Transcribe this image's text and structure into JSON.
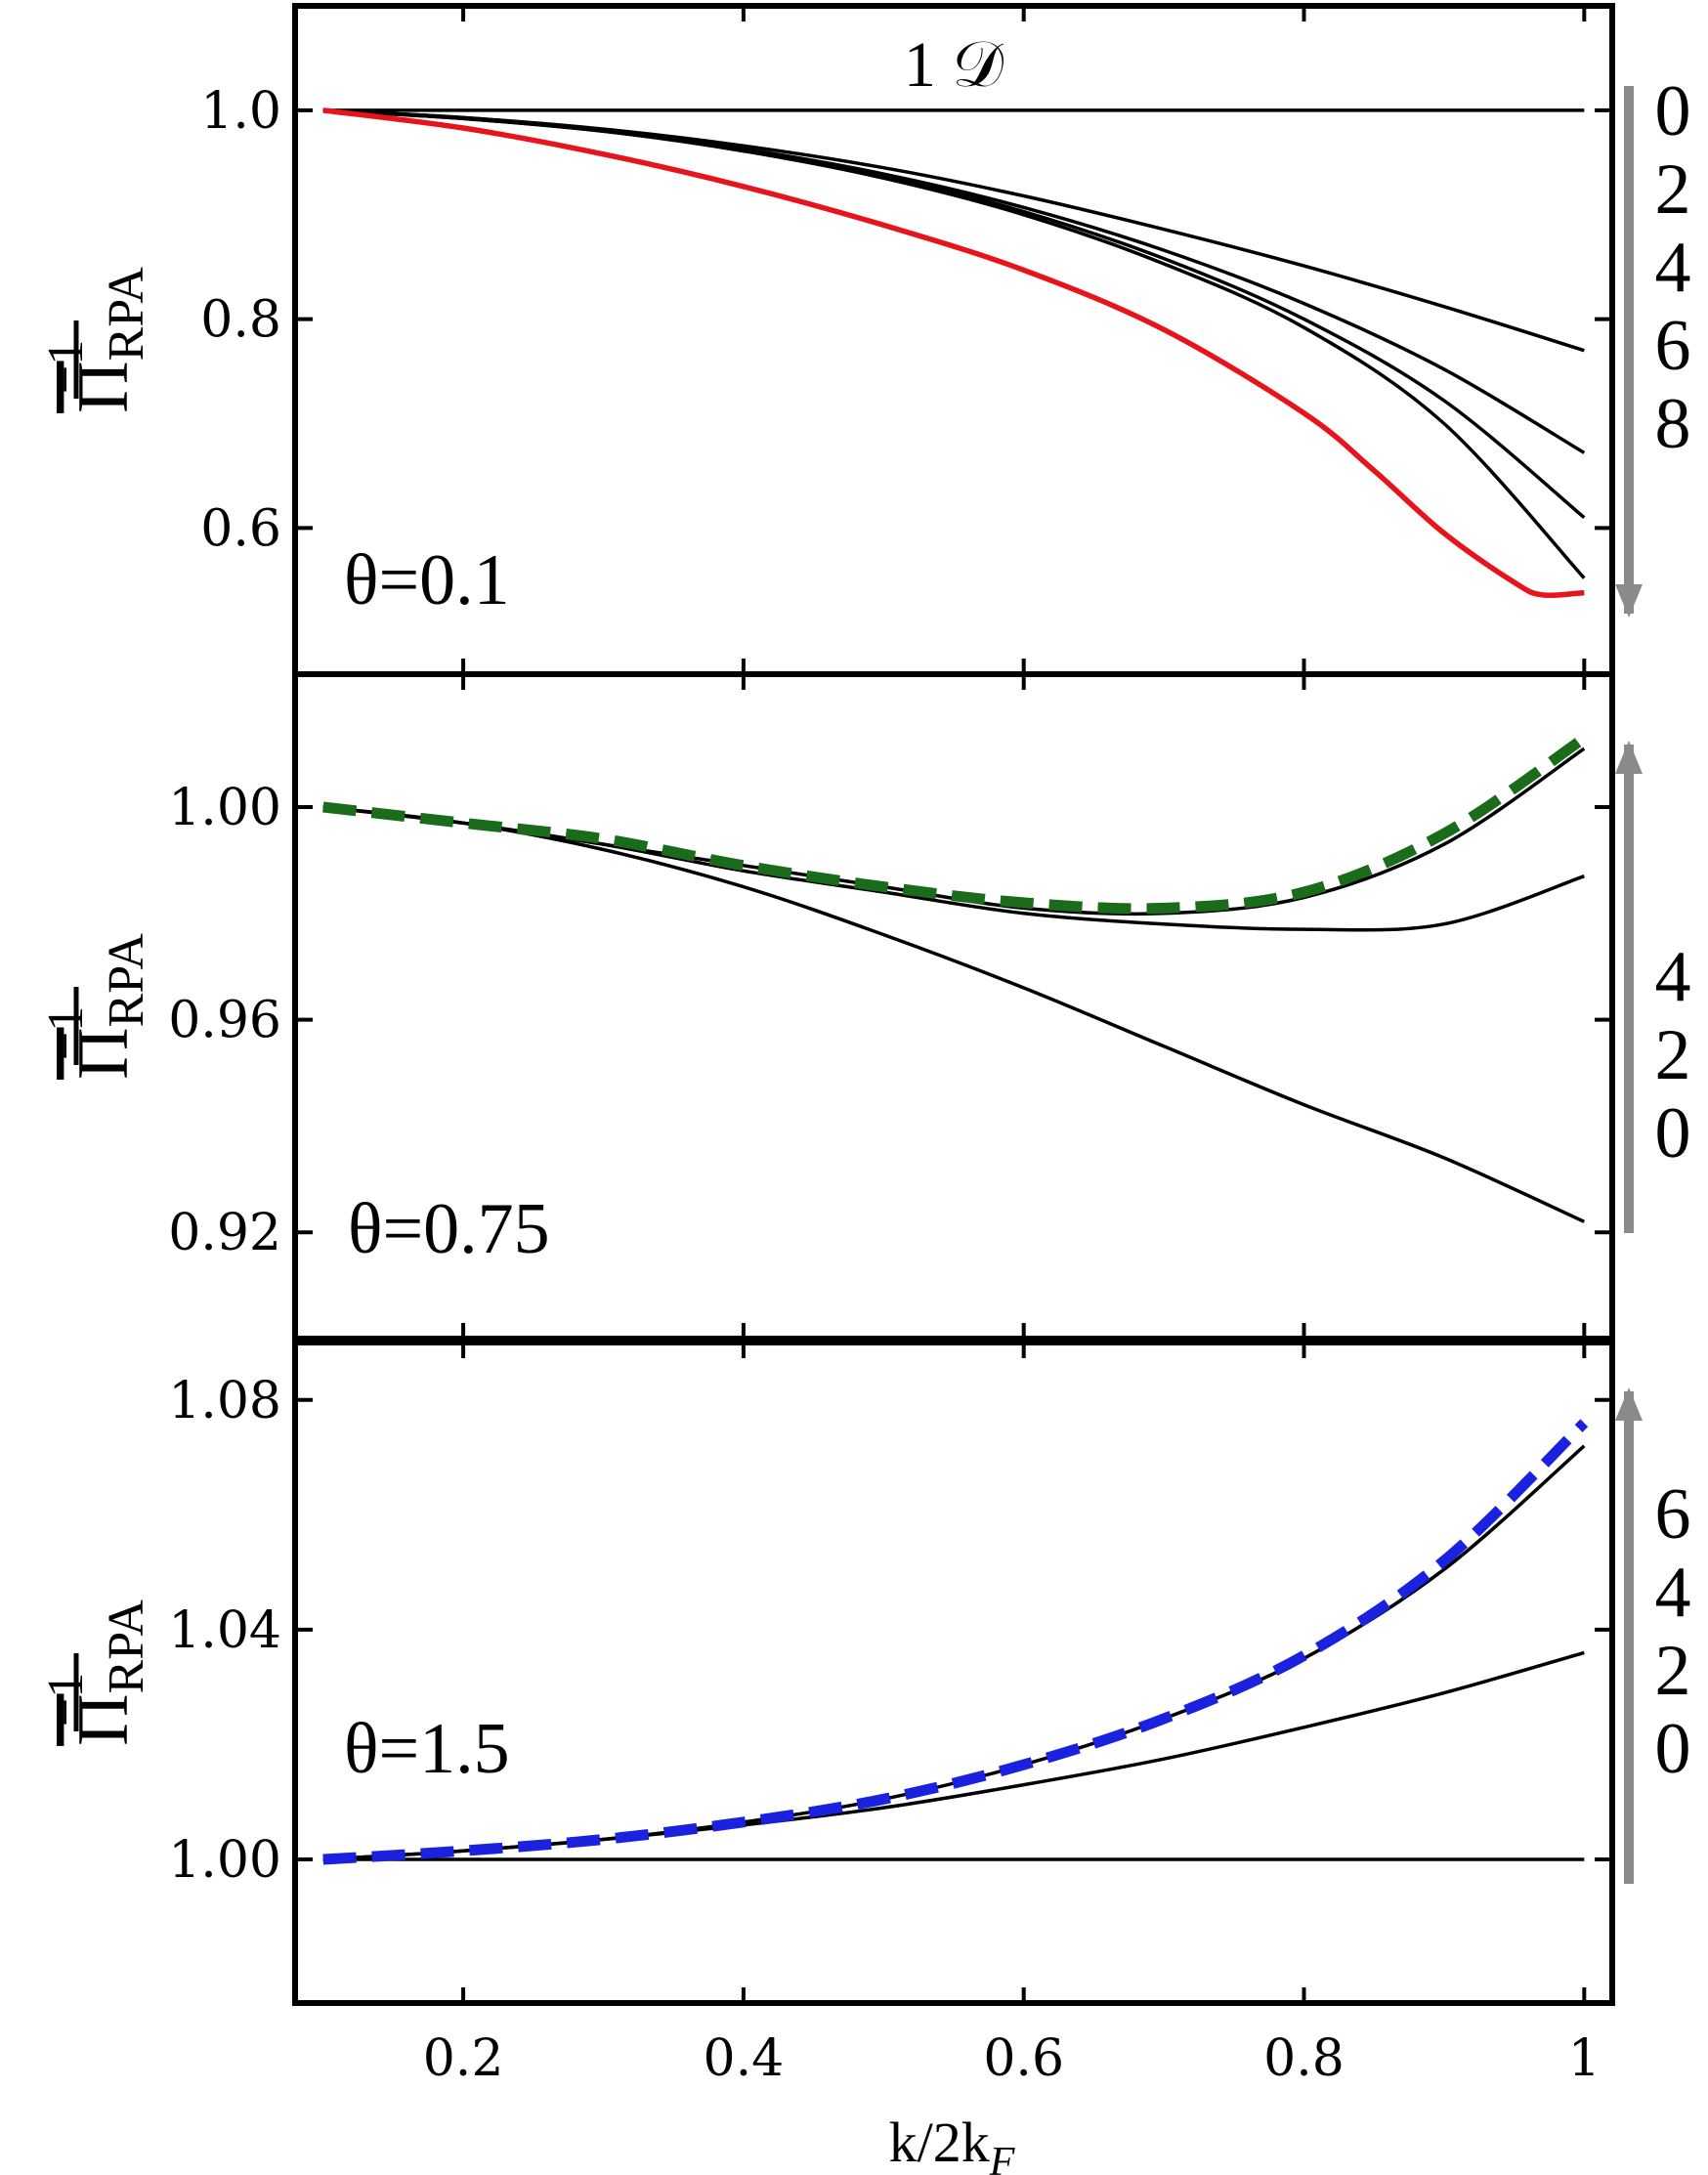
{
  "chart_data": [
    {
      "type": "line",
      "dimension_label": "1 𝒟",
      "theta_label": "θ=0.1",
      "ylabel_main": "Π",
      "ylabel_sub": "RPA",
      "ylabel_sup": "−1",
      "xlim": [
        0.08,
        1.02
      ],
      "ylim": [
        0.46,
        1.1
      ],
      "yticks": [
        {
          "value": 0.6,
          "label": "0.6"
        },
        {
          "value": 0.8,
          "label": "0.8"
        },
        {
          "value": 1.0,
          "label": "1.0"
        }
      ],
      "xticks": [
        0.2,
        0.4,
        0.6,
        0.8,
        1.0
      ],
      "arrow": {
        "direction": "down",
        "labels": [
          "0",
          "2",
          "4",
          "6",
          "8"
        ]
      },
      "series": [
        {
          "color": "#000000",
          "style": "solid",
          "x": [
            0.1,
            1.0
          ],
          "y": [
            1.0,
            1.0
          ]
        },
        {
          "color": "#000000",
          "style": "solid",
          "x": [
            0.1,
            0.2,
            0.3,
            0.4,
            0.5,
            0.6,
            0.7,
            0.8,
            0.9,
            1.0
          ],
          "y": [
            1.0,
            0.993,
            0.982,
            0.966,
            0.945,
            0.918,
            0.886,
            0.851,
            0.812,
            0.77
          ]
        },
        {
          "color": "#000000",
          "style": "solid",
          "x": [
            0.1,
            0.2,
            0.3,
            0.4,
            0.5,
            0.6,
            0.7,
            0.8,
            0.9,
            1.0
          ],
          "y": [
            1.0,
            0.993,
            0.981,
            0.963,
            0.939,
            0.907,
            0.866,
            0.815,
            0.752,
            0.672
          ]
        },
        {
          "color": "#000000",
          "style": "solid",
          "x": [
            0.1,
            0.2,
            0.3,
            0.4,
            0.5,
            0.6,
            0.7,
            0.8,
            0.9,
            1.0
          ],
          "y": [
            1.0,
            0.992,
            0.98,
            0.962,
            0.937,
            0.903,
            0.858,
            0.8,
            0.722,
            0.61
          ]
        },
        {
          "color": "#000000",
          "style": "solid",
          "x": [
            0.1,
            0.2,
            0.3,
            0.4,
            0.5,
            0.6,
            0.7,
            0.8,
            0.9,
            1.0
          ],
          "y": [
            1.0,
            0.992,
            0.98,
            0.961,
            0.935,
            0.9,
            0.853,
            0.792,
            0.7,
            0.552
          ]
        },
        {
          "color": "#e8141c",
          "style": "solid",
          "x": [
            0.1,
            0.2,
            0.3,
            0.4,
            0.5,
            0.6,
            0.7,
            0.8,
            0.85,
            0.9,
            0.95,
            0.97,
            1.0
          ],
          "y": [
            1.0,
            0.983,
            0.958,
            0.927,
            0.89,
            0.847,
            0.79,
            0.71,
            0.655,
            0.595,
            0.548,
            0.536,
            0.538
          ]
        }
      ]
    },
    {
      "type": "line",
      "theta_label": "θ=0.75",
      "ylabel_main": "Π",
      "ylabel_sub": "RPA",
      "ylabel_sup": "−1",
      "xlim": [
        0.08,
        1.02
      ],
      "ylim": [
        0.9,
        1.025
      ],
      "yticks": [
        {
          "value": 0.92,
          "label": "0.92"
        },
        {
          "value": 0.96,
          "label": "0.96"
        },
        {
          "value": 1.0,
          "label": "1.00"
        }
      ],
      "xticks": [
        0.2,
        0.4,
        0.6,
        0.8,
        1.0
      ],
      "arrow": {
        "direction": "up",
        "labels": [
          "4",
          "2",
          "0"
        ]
      },
      "series": [
        {
          "color": "#000000",
          "style": "solid",
          "x": [
            0.1,
            0.2,
            0.3,
            0.4,
            0.5,
            0.6,
            0.7,
            0.8,
            0.9,
            1.0
          ],
          "y": [
            1.0,
            0.997,
            0.992,
            0.985,
            0.976,
            0.966,
            0.955,
            0.944,
            0.934,
            0.922
          ]
        },
        {
          "color": "#000000",
          "style": "solid",
          "x": [
            0.1,
            0.2,
            0.3,
            0.4,
            0.5,
            0.6,
            0.7,
            0.8,
            0.9,
            1.0
          ],
          "y": [
            1.0,
            0.997,
            0.993,
            0.988,
            0.984,
            0.98,
            0.978,
            0.977,
            0.978,
            0.987
          ]
        },
        {
          "color": "#000000",
          "style": "solid",
          "x": [
            0.1,
            0.2,
            0.3,
            0.4,
            0.5,
            0.6,
            0.7,
            0.8,
            0.9,
            1.0
          ],
          "y": [
            1.0,
            0.997,
            0.993,
            0.989,
            0.985,
            0.981,
            0.98,
            0.983,
            0.993,
            1.011
          ]
        },
        {
          "color": "#1a6b1a",
          "style": "dashed",
          "x": [
            0.1,
            0.2,
            0.3,
            0.4,
            0.5,
            0.6,
            0.7,
            0.8,
            0.9,
            1.0
          ],
          "y": [
            1.0,
            0.997,
            0.994,
            0.989,
            0.985,
            0.982,
            0.981,
            0.984,
            0.995,
            1.013
          ]
        }
      ]
    },
    {
      "type": "line",
      "theta_label": "θ=1.5",
      "ylabel_main": "Π",
      "ylabel_sub": "RPA",
      "ylabel_sup": "−1",
      "xlabel": "k/2k",
      "xlabel_sub": "F",
      "xlim": [
        0.08,
        1.02
      ],
      "ylim": [
        0.975,
        1.09
      ],
      "yticks": [
        {
          "value": 1.0,
          "label": "1.00"
        },
        {
          "value": 1.04,
          "label": "1.04"
        },
        {
          "value": 1.08,
          "label": "1.08"
        }
      ],
      "xticks": [
        0.2,
        0.4,
        0.6,
        0.8,
        1.0
      ],
      "xticklabels": [
        "0.2",
        "0.4",
        "0.6",
        "0.8",
        "1"
      ],
      "arrow": {
        "direction": "up",
        "labels": [
          "6",
          "4",
          "2",
          "0"
        ]
      },
      "series": [
        {
          "color": "#000000",
          "style": "solid",
          "x": [
            0.1,
            1.0
          ],
          "y": [
            1.0,
            1.0
          ]
        },
        {
          "color": "#000000",
          "style": "solid",
          "x": [
            0.1,
            0.2,
            0.3,
            0.4,
            0.5,
            0.6,
            0.7,
            0.8,
            0.9,
            1.0
          ],
          "y": [
            1.0,
            1.0015,
            1.0035,
            1.006,
            1.009,
            1.013,
            1.0175,
            1.023,
            1.029,
            1.036
          ]
        },
        {
          "color": "#000000",
          "style": "solid",
          "x": [
            0.1,
            0.2,
            0.3,
            0.4,
            0.5,
            0.6,
            0.7,
            0.8,
            0.9,
            1.0
          ],
          "y": [
            1.0,
            1.0015,
            1.0035,
            1.0065,
            1.0105,
            1.0165,
            1.0245,
            1.035,
            1.0505,
            1.072
          ]
        },
        {
          "color": "#1a22e0",
          "style": "dashed",
          "x": [
            0.1,
            0.2,
            0.3,
            0.4,
            0.5,
            0.6,
            0.7,
            0.8,
            0.9,
            1.0
          ],
          "y": [
            1.0,
            1.0015,
            1.0035,
            1.0065,
            1.0105,
            1.0165,
            1.0245,
            1.0355,
            1.052,
            1.076
          ]
        }
      ]
    }
  ]
}
